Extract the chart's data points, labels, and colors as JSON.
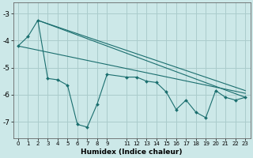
{
  "xlabel": "Humidex (Indice chaleur)",
  "background_color": "#cce8e8",
  "grid_color": "#aacccc",
  "line_color": "#1a6e6e",
  "xlim": [
    -0.5,
    23.5
  ],
  "ylim": [
    -7.6,
    -2.6
  ],
  "yticks": [
    -7,
    -6,
    -5,
    -4,
    -3
  ],
  "xtick_positions": [
    0,
    1,
    2,
    3,
    4,
    5,
    6,
    7,
    8,
    9,
    11,
    12,
    13,
    14,
    15,
    16,
    17,
    18,
    19,
    20,
    21,
    22,
    23
  ],
  "xtick_labels": [
    "0",
    "1",
    "2",
    "3",
    "4",
    "5",
    "6",
    "7",
    "8",
    "9",
    "11",
    "12",
    "13",
    "14",
    "15",
    "16",
    "17",
    "18",
    "19",
    "20",
    "21",
    "22",
    "23"
  ],
  "data_x": [
    0,
    1,
    2,
    3,
    4,
    5,
    6,
    7,
    8,
    9,
    11,
    12,
    13,
    14,
    15,
    16,
    17,
    18,
    19,
    20,
    21,
    22,
    23
  ],
  "data_y": [
    -4.2,
    -3.85,
    -3.25,
    -5.4,
    -5.45,
    -5.65,
    -7.1,
    -7.2,
    -6.35,
    -5.25,
    -5.35,
    -5.35,
    -5.5,
    -5.55,
    -5.9,
    -6.55,
    -6.2,
    -6.65,
    -6.85,
    -5.85,
    -6.1,
    -6.2,
    -6.1
  ],
  "line1_x": [
    2,
    23
  ],
  "line1_y": [
    -3.25,
    -6.1
  ],
  "line2_x": [
    0,
    23
  ],
  "line2_y": [
    -4.2,
    -5.95
  ],
  "line3_x": [
    2,
    23
  ],
  "line3_y": [
    -3.25,
    -5.85
  ]
}
